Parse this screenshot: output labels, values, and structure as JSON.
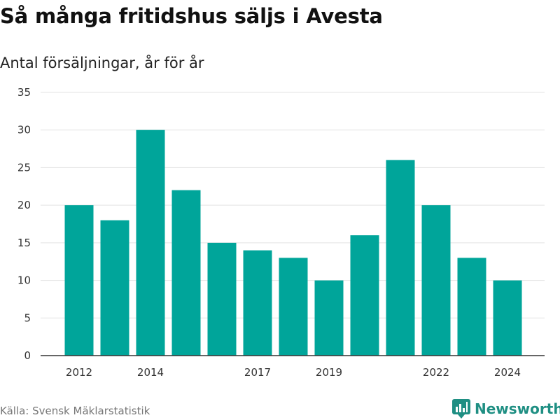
{
  "title": "Så många fritidshus säljs i Avesta",
  "subtitle": "Antal försäljningar, år för år",
  "source": "Källa: Svensk Mäklarstatistik",
  "brand": {
    "name": "Newsworthy",
    "icon": "newsworthy-logo-icon",
    "color": "#1f8f83"
  },
  "colors": {
    "bar": "#00a59a",
    "grid": "#e3e3e3",
    "axis": "#333333"
  },
  "chart_data": {
    "type": "bar",
    "x": [
      2012,
      2013,
      2014,
      2015,
      2016,
      2017,
      2018,
      2019,
      2020,
      2021,
      2022,
      2023,
      2024
    ],
    "values": [
      20,
      18,
      30,
      22,
      15,
      14,
      13,
      10,
      16,
      26,
      20,
      13,
      10
    ],
    "x_tick_labels": [
      "2012",
      "2014",
      "2017",
      "2019",
      "2022",
      "2024"
    ],
    "y_ticks": [
      0,
      5,
      10,
      15,
      20,
      25,
      30,
      35
    ],
    "ylim": [
      0,
      35
    ],
    "grid": true,
    "legend": false
  }
}
